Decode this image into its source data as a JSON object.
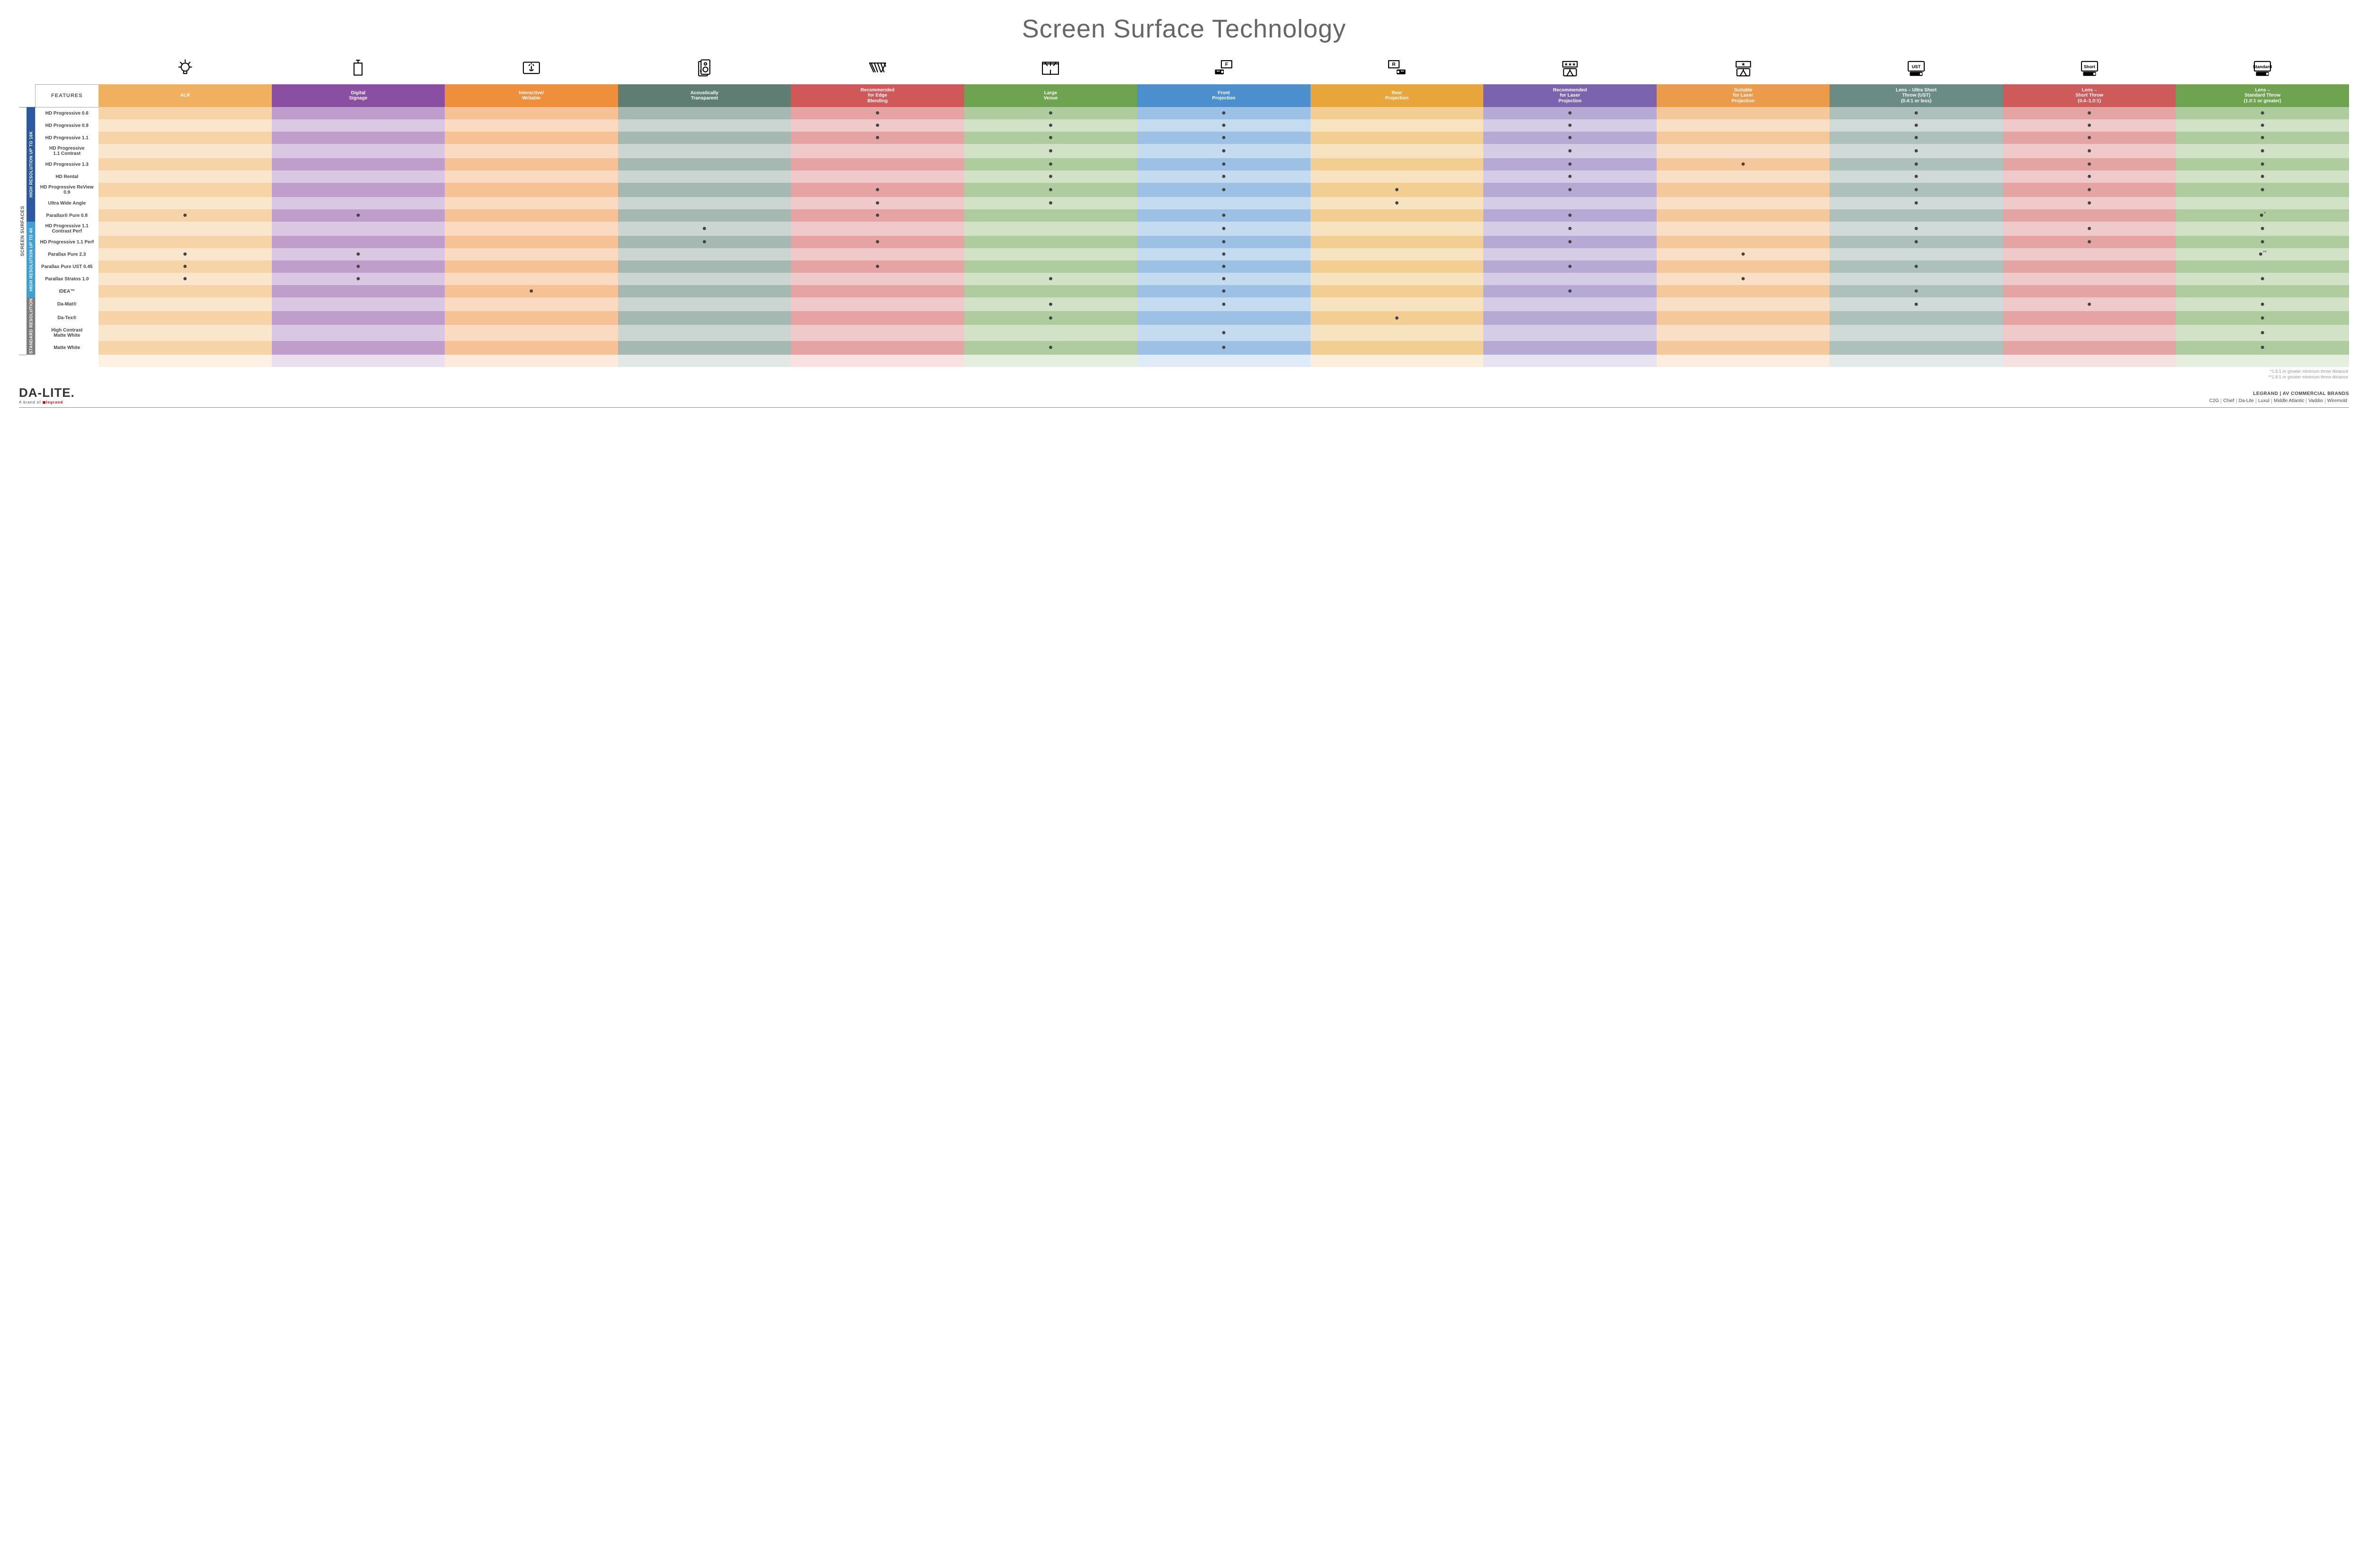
{
  "title": "Screen Surface Technology",
  "outerLabel": "SCREEN SURFACES",
  "groups": [
    {
      "label": "HIGH RESOLUTION UP TO 16K",
      "color": "#2c5aa0",
      "rows": 9
    },
    {
      "label": "HIGH RESOLUTION UP TO 4K",
      "color": "#3fa0d8",
      "rows": 6
    },
    {
      "label": "STANDARD RESOLUTION",
      "color": "#7d7d7d",
      "rows": 4
    }
  ],
  "featuresHeader": "FEATURES",
  "columns": [
    {
      "label": "ALR",
      "base": "#f0b060",
      "alt": "#f6d0a0"
    },
    {
      "label": "Digital\nSignage",
      "base": "#8a4fa3",
      "alt": "#c4a4d4"
    },
    {
      "label": "Interactive/\nWritable",
      "base": "#ef8f3c",
      "alt": "#fbe0c5"
    },
    {
      "label": "Acoustically\nTransparent",
      "base": "#5e7d73",
      "alt": "#b5c4be"
    },
    {
      "label": "Recommended\nfor Edge\nBlending",
      "base": "#d15858",
      "alt": "#eebcb5"
    },
    {
      "label": "Large\nVenue",
      "base": "#6ea34f",
      "alt": "#c3dcb2"
    },
    {
      "label": "Front\nProjection",
      "base": "#4b8fcf",
      "alt": "#b6d1ea"
    },
    {
      "label": "Rear\nProjection",
      "base": "#e8a63a",
      "alt": "#f5dba8"
    },
    {
      "label": "Recommended\nfor Laser\nProjection",
      "base": "#7b63b0",
      "alt": "#c6b8e0"
    },
    {
      "label": "Suitable\nfor Laser\nProjection",
      "base": "#ec9b4a",
      "alt": "#f8dcbd"
    },
    {
      "label": "Lens – Ultra Short\nThrow (UST)\n(0.4:1 or less)",
      "base": "#6b8c84",
      "alt": "#bccbc6"
    },
    {
      "label": "Lens –\nShort Throw\n(0.4–1.0:1)",
      "base": "#cf5a5a",
      "alt": "#edbdb7"
    },
    {
      "label": "Lens –\nStandard Throw\n(1.0:1 or greater)",
      "base": "#6ea34f",
      "alt": "#c3dcb2"
    }
  ],
  "rows": [
    {
      "label": "HD Progressive 0.6",
      "dots": [
        0,
        0,
        0,
        0,
        1,
        1,
        1,
        0,
        1,
        0,
        1,
        1,
        1
      ]
    },
    {
      "label": "HD Progressive 0.9",
      "dots": [
        0,
        0,
        0,
        0,
        1,
        1,
        1,
        0,
        1,
        0,
        1,
        1,
        1
      ]
    },
    {
      "label": "HD Progressive 1.1",
      "dots": [
        0,
        0,
        0,
        0,
        1,
        1,
        1,
        0,
        1,
        0,
        1,
        1,
        1
      ]
    },
    {
      "label": "HD Progressive\n1.1 Contrast",
      "dots": [
        0,
        0,
        0,
        0,
        0,
        1,
        1,
        0,
        1,
        0,
        1,
        1,
        1
      ]
    },
    {
      "label": "HD Progressive 1.3",
      "dots": [
        0,
        0,
        0,
        0,
        0,
        1,
        1,
        0,
        1,
        1,
        1,
        1,
        1
      ]
    },
    {
      "label": "HD Rental",
      "dots": [
        0,
        0,
        0,
        0,
        0,
        1,
        1,
        0,
        1,
        0,
        1,
        1,
        1
      ]
    },
    {
      "label": "HD Progressive ReView 0.9",
      "dots": [
        0,
        0,
        0,
        0,
        1,
        1,
        1,
        1,
        1,
        0,
        1,
        1,
        1
      ]
    },
    {
      "label": "Ultra Wide Angle",
      "dots": [
        0,
        0,
        0,
        0,
        1,
        1,
        0,
        1,
        0,
        0,
        1,
        1,
        0
      ]
    },
    {
      "label": "Parallax® Pure 0.8",
      "dots": [
        1,
        1,
        0,
        0,
        1,
        0,
        1,
        0,
        1,
        0,
        0,
        0,
        1
      ],
      "note": "*"
    },
    {
      "label": "HD Progressive 1.1\nContrast Perf",
      "dots": [
        0,
        0,
        0,
        1,
        0,
        0,
        1,
        0,
        1,
        0,
        1,
        1,
        1
      ]
    },
    {
      "label": "HD Progressive 1.1 Perf",
      "dots": [
        0,
        0,
        0,
        1,
        1,
        0,
        1,
        0,
        1,
        0,
        1,
        1,
        1
      ]
    },
    {
      "label": "Parallax Pure 2.3",
      "dots": [
        1,
        1,
        0,
        0,
        0,
        0,
        1,
        0,
        0,
        1,
        0,
        0,
        1
      ],
      "note": "**"
    },
    {
      "label": "Parallax Pure UST 0.45",
      "dots": [
        1,
        1,
        0,
        0,
        1,
        0,
        1,
        0,
        1,
        0,
        1,
        0,
        0
      ]
    },
    {
      "label": "Parallax Stratos 1.0",
      "dots": [
        1,
        1,
        0,
        0,
        0,
        1,
        1,
        0,
        0,
        1,
        0,
        0,
        1
      ]
    },
    {
      "label": "IDEA™",
      "dots": [
        0,
        0,
        1,
        0,
        0,
        0,
        1,
        0,
        1,
        0,
        1,
        0,
        0
      ]
    },
    {
      "label": "Da-Mat®",
      "dots": [
        0,
        0,
        0,
        0,
        0,
        1,
        1,
        0,
        0,
        0,
        1,
        1,
        1
      ]
    },
    {
      "label": "Da-Tex®",
      "dots": [
        0,
        0,
        0,
        0,
        0,
        1,
        0,
        1,
        0,
        0,
        0,
        0,
        1
      ]
    },
    {
      "label": "High Contrast\nMatte White",
      "dots": [
        0,
        0,
        0,
        0,
        0,
        0,
        1,
        0,
        0,
        0,
        0,
        0,
        1
      ]
    },
    {
      "label": "Matte White",
      "dots": [
        0,
        0,
        0,
        0,
        0,
        1,
        1,
        0,
        0,
        0,
        0,
        0,
        1
      ]
    }
  ],
  "footnotes": [
    "*1.5:1 or greater minimum throw distance",
    "**1.8:1 or greater minimum throw distance"
  ],
  "footer": {
    "brand": "DA-LITE.",
    "brandSub": "A brand of",
    "brandSubLogo": "legrand",
    "rightTop": "LEGRAND | AV COMMERCIAL BRANDS",
    "brands": [
      "C2G",
      "Chief",
      "Da-Lite",
      "Luxul",
      "Middle Atlantic",
      "Vaddio",
      "Wiremold"
    ]
  },
  "icons": [
    "bulb",
    "signage",
    "touch",
    "speaker",
    "blend",
    "venue",
    "front",
    "rear",
    "laser-rec",
    "laser-ok",
    "ust",
    "short",
    "standard"
  ]
}
